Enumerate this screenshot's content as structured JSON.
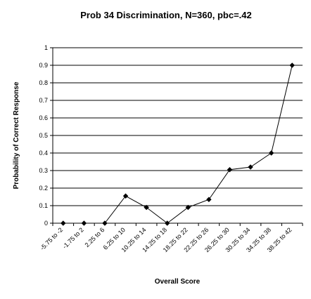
{
  "chart_data": {
    "type": "line",
    "title": "Prob 34 Discrimination, N=360, pbc=.42",
    "xlabel": "Overall Score",
    "ylabel": "Probability of Correct Response",
    "categories": [
      "-5.75 to -2",
      "-1.75 to 2",
      "2.25 to 6",
      "6.25 to 10",
      "10.25 to 14",
      "14.25 to 18",
      "18.25 to 22",
      "22.25 to 26",
      "26.25 to 30",
      "30.25 to 34",
      "34.25 to 38",
      "38.25 to 42"
    ],
    "values": [
      0,
      0,
      0,
      0.155,
      0.09,
      0,
      0.09,
      0.135,
      0.305,
      0.32,
      0.4,
      0.9
    ],
    "ylim": [
      0,
      1
    ],
    "yticks": [
      "0",
      "0.1",
      "0.2",
      "0.3",
      "0.4",
      "0.5",
      "0.6",
      "0.7",
      "0.8",
      "0.9",
      "1"
    ],
    "grid": true,
    "legend": "none",
    "line_color": "#000000",
    "marker": "diamond"
  }
}
